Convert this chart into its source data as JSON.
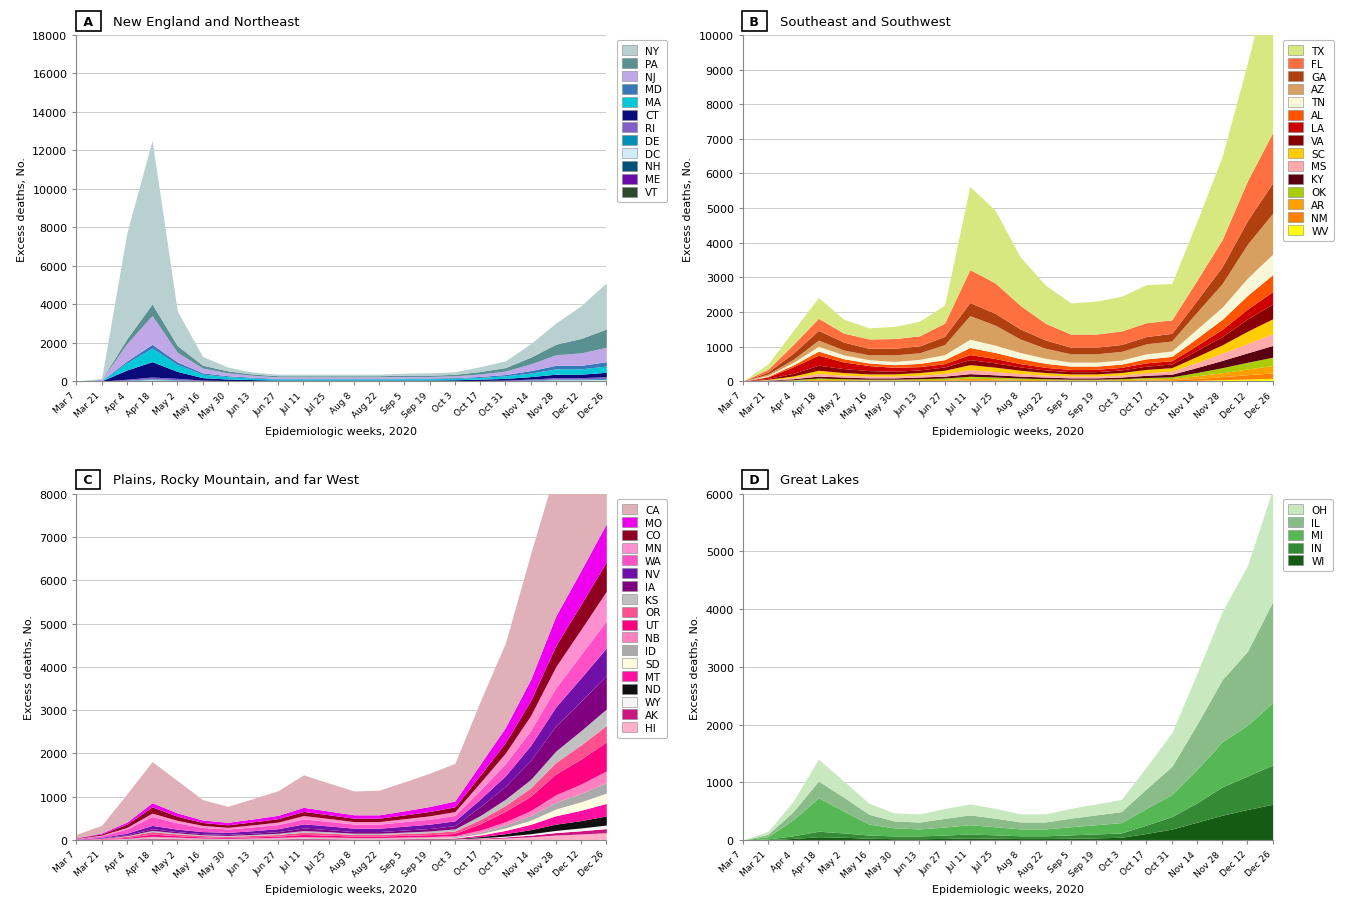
{
  "x_labels": [
    "Mar 7",
    "Mar 21",
    "Apr 4",
    "Apr 18",
    "May 2",
    "May 16",
    "May 30",
    "Jun 13",
    "Jun 27",
    "Jul 11",
    "Jul 25",
    "Aug 8",
    "Aug 22",
    "Sep 5",
    "Sep 19",
    "Oct 3",
    "Oct 17",
    "Oct 31",
    "Nov 14",
    "Nov 28",
    "Dec 12",
    "Dec 26"
  ],
  "panel_A": {
    "title": "New England and Northeast",
    "label": "A",
    "ylabel": "Excess deaths, No.",
    "ylim": [
      0,
      18000
    ],
    "yticks": [
      0,
      2000,
      4000,
      6000,
      8000,
      10000,
      12000,
      14000,
      16000,
      18000
    ],
    "states": [
      "VT",
      "ME",
      "NH",
      "DC",
      "DE",
      "RI",
      "CT",
      "MA",
      "MD",
      "NJ",
      "PA",
      "NY"
    ],
    "colors": [
      "#2d4a2d",
      "#6a0aaa",
      "#00507a",
      "#d0ecf8",
      "#0090b8",
      "#8060c8",
      "#0a0a7a",
      "#00c8d8",
      "#3878b8",
      "#c0a8e8",
      "#5a9090",
      "#b8d0d0"
    ],
    "data": {
      "NY": [
        0,
        50,
        5500,
        8500,
        1800,
        450,
        200,
        100,
        80,
        80,
        80,
        80,
        80,
        100,
        120,
        130,
        250,
        350,
        700,
        1100,
        1700,
        2400
      ],
      "PA": [
        0,
        20,
        250,
        600,
        350,
        150,
        100,
        70,
        60,
        60,
        60,
        60,
        60,
        70,
        70,
        80,
        130,
        180,
        350,
        550,
        750,
        950
      ],
      "NJ": [
        0,
        30,
        900,
        1500,
        500,
        250,
        150,
        100,
        80,
        80,
        80,
        80,
        80,
        80,
        80,
        90,
        130,
        180,
        350,
        550,
        650,
        750
      ],
      "MD": [
        0,
        10,
        90,
        200,
        130,
        70,
        50,
        40,
        30,
        30,
        30,
        30,
        30,
        35,
        35,
        40,
        50,
        70,
        130,
        180,
        180,
        230
      ],
      "MA": [
        0,
        20,
        380,
        700,
        360,
        180,
        120,
        80,
        60,
        60,
        60,
        60,
        60,
        70,
        70,
        70,
        90,
        130,
        180,
        280,
        280,
        320
      ],
      "CT": [
        0,
        15,
        480,
        800,
        360,
        130,
        80,
        60,
        40,
        40,
        40,
        40,
        40,
        45,
        45,
        50,
        70,
        90,
        130,
        180,
        180,
        230
      ],
      "RI": [
        0,
        4,
        45,
        95,
        70,
        25,
        15,
        10,
        8,
        8,
        8,
        8,
        8,
        9,
        9,
        12,
        16,
        25,
        45,
        70,
        70,
        90
      ],
      "DE": [
        0,
        2,
        18,
        38,
        26,
        12,
        8,
        6,
        4,
        4,
        4,
        4,
        4,
        4,
        4,
        6,
        8,
        12,
        22,
        35,
        35,
        45
      ],
      "DC": [
        0,
        2,
        28,
        58,
        35,
        12,
        8,
        6,
        4,
        4,
        4,
        4,
        4,
        4,
        4,
        6,
        8,
        12,
        22,
        35,
        35,
        45
      ],
      "NH": [
        0,
        1,
        9,
        18,
        12,
        6,
        4,
        3,
        2,
        2,
        2,
        2,
        2,
        2,
        2,
        3,
        4,
        6,
        12,
        22,
        22,
        26
      ],
      "ME": [
        0,
        1,
        4,
        8,
        6,
        3,
        2,
        1,
        1,
        1,
        1,
        1,
        1,
        1,
        1,
        2,
        3,
        4,
        8,
        18,
        18,
        22
      ],
      "VT": [
        0,
        0,
        2,
        4,
        3,
        1,
        1,
        1,
        0,
        0,
        0,
        0,
        0,
        0,
        0,
        1,
        1,
        2,
        4,
        8,
        8,
        10
      ]
    }
  },
  "panel_B": {
    "title": "Southeast and Southwest",
    "label": "B",
    "ylabel": "Excess deaths, No.",
    "ylim": [
      0,
      10000
    ],
    "yticks": [
      0,
      1000,
      2000,
      3000,
      4000,
      5000,
      6000,
      7000,
      8000,
      9000,
      10000
    ],
    "states": [
      "WV",
      "NM",
      "AR",
      "OK",
      "KY",
      "MS",
      "SC",
      "VA",
      "LA",
      "AL",
      "TN",
      "AZ",
      "GA",
      "FL",
      "TX"
    ],
    "colors": [
      "#ffff00",
      "#ff8000",
      "#ffa000",
      "#aacc00",
      "#5a0010",
      "#ffaaaa",
      "#ffcc00",
      "#880000",
      "#cc0000",
      "#ff5500",
      "#f8f8d8",
      "#d8a060",
      "#b04010",
      "#ff7040",
      "#d8e880"
    ],
    "data": {
      "TX": [
        0,
        150,
        400,
        600,
        400,
        320,
        350,
        420,
        520,
        2400,
        2100,
        1400,
        1100,
        900,
        950,
        1000,
        1100,
        1050,
        1700,
        2400,
        3400,
        4900
      ],
      "FL": [
        0,
        80,
        250,
        350,
        260,
        270,
        280,
        290,
        380,
        950,
        880,
        680,
        480,
        380,
        380,
        390,
        400,
        390,
        580,
        780,
        1150,
        1450
      ],
      "GA": [
        0,
        60,
        180,
        280,
        230,
        190,
        190,
        200,
        240,
        380,
        340,
        290,
        240,
        190,
        190,
        200,
        210,
        220,
        340,
        490,
        680,
        880
      ],
      "AZ": [
        0,
        40,
        90,
        180,
        140,
        140,
        190,
        190,
        290,
        680,
        580,
        390,
        290,
        240,
        240,
        250,
        290,
        290,
        490,
        680,
        980,
        1180
      ],
      "TN": [
        0,
        25,
        70,
        140,
        110,
        95,
        95,
        115,
        145,
        240,
        210,
        175,
        145,
        115,
        115,
        115,
        145,
        155,
        260,
        355,
        500,
        590
      ],
      "AL": [
        0,
        20,
        55,
        115,
        95,
        75,
        75,
        95,
        115,
        205,
        175,
        145,
        115,
        95,
        95,
        95,
        115,
        125,
        210,
        285,
        395,
        490
      ],
      "LA": [
        0,
        40,
        190,
        290,
        190,
        145,
        115,
        95,
        95,
        145,
        125,
        95,
        75,
        65,
        65,
        75,
        95,
        95,
        145,
        210,
        285,
        355
      ],
      "VA": [
        0,
        25,
        75,
        145,
        115,
        95,
        75,
        75,
        95,
        145,
        125,
        95,
        75,
        65,
        65,
        75,
        95,
        105,
        175,
        240,
        355,
        430
      ],
      "SC": [
        0,
        15,
        45,
        95,
        75,
        65,
        65,
        75,
        95,
        145,
        125,
        95,
        75,
        65,
        65,
        75,
        95,
        105,
        175,
        240,
        355,
        430
      ],
      "MS": [
        0,
        12,
        35,
        75,
        55,
        50,
        50,
        55,
        75,
        115,
        95,
        75,
        55,
        50,
        50,
        55,
        75,
        85,
        145,
        210,
        270,
        340
      ],
      "KY": [
        0,
        12,
        28,
        55,
        48,
        38,
        38,
        48,
        55,
        75,
        65,
        55,
        48,
        38,
        38,
        48,
        65,
        75,
        145,
        210,
        270,
        340
      ],
      "OK": [
        0,
        8,
        18,
        38,
        28,
        24,
        24,
        28,
        38,
        55,
        48,
        38,
        28,
        24,
        24,
        28,
        38,
        48,
        95,
        145,
        195,
        240
      ],
      "AR": [
        0,
        6,
        14,
        28,
        24,
        19,
        19,
        24,
        28,
        48,
        38,
        28,
        24,
        19,
        19,
        24,
        34,
        38,
        75,
        115,
        165,
        215
      ],
      "NM": [
        0,
        4,
        9,
        19,
        14,
        12,
        12,
        14,
        19,
        28,
        24,
        19,
        14,
        12,
        12,
        14,
        24,
        28,
        55,
        85,
        125,
        155
      ],
      "WV": [
        0,
        2,
        4,
        9,
        8,
        5,
        5,
        8,
        9,
        14,
        12,
        9,
        8,
        5,
        5,
        8,
        12,
        14,
        28,
        48,
        65,
        85
      ]
    }
  },
  "panel_C": {
    "title": "Plains, Rocky Mountain, and far West",
    "label": "C",
    "ylabel": "Excess deaths, No.",
    "ylim": [
      0,
      8000
    ],
    "yticks": [
      0,
      1000,
      2000,
      3000,
      4000,
      5000,
      6000,
      7000,
      8000
    ],
    "states": [
      "HI",
      "AK",
      "WY",
      "ND",
      "MT",
      "SD",
      "ID",
      "NB",
      "UT",
      "OR",
      "KS",
      "IA",
      "NV",
      "WA",
      "MN",
      "CO",
      "MO",
      "CA"
    ],
    "colors": [
      "#ffb0c8",
      "#cc1580",
      "#f5f5f5",
      "#101010",
      "#ff10a0",
      "#fffae0",
      "#aaaaaa",
      "#ff80c0",
      "#ff0080",
      "#ff5090",
      "#c0c0c0",
      "#800080",
      "#7010a8",
      "#ff50c8",
      "#ff90d0",
      "#900020",
      "#ee00ee",
      "#e0b0b8"
    ],
    "data": {
      "CA": [
        80,
        180,
        650,
        950,
        750,
        470,
        370,
        470,
        570,
        750,
        650,
        550,
        570,
        670,
        770,
        870,
        1450,
        1950,
        2900,
        3400,
        3700,
        4400
      ],
      "MO": [
        4,
        18,
        48,
        95,
        75,
        58,
        58,
        68,
        78,
        95,
        85,
        78,
        78,
        95,
        115,
        135,
        250,
        345,
        490,
        680,
        780,
        880
      ],
      "CO": [
        9,
        28,
        75,
        145,
        95,
        68,
        58,
        68,
        78,
        95,
        85,
        78,
        78,
        88,
        100,
        110,
        175,
        245,
        345,
        490,
        580,
        680
      ],
      "MN": [
        4,
        14,
        38,
        78,
        58,
        48,
        38,
        48,
        58,
        78,
        68,
        58,
        58,
        68,
        78,
        88,
        175,
        245,
        345,
        490,
        580,
        680
      ],
      "WA": [
        14,
        38,
        95,
        205,
        145,
        95,
        78,
        88,
        95,
        115,
        105,
        95,
        95,
        105,
        115,
        125,
        205,
        280,
        345,
        440,
        540,
        630
      ],
      "NV": [
        4,
        14,
        38,
        78,
        58,
        48,
        48,
        58,
        68,
        95,
        85,
        78,
        78,
        88,
        100,
        110,
        175,
        245,
        345,
        440,
        540,
        630
      ],
      "IA": [
        2,
        8,
        19,
        38,
        28,
        24,
        24,
        28,
        38,
        58,
        48,
        38,
        38,
        48,
        58,
        75,
        205,
        295,
        440,
        580,
        680,
        780
      ],
      "KS": [
        2,
        5,
        14,
        28,
        24,
        19,
        19,
        24,
        28,
        38,
        33,
        28,
        28,
        33,
        38,
        48,
        95,
        145,
        195,
        265,
        330,
        380
      ],
      "OR": [
        4,
        11,
        28,
        58,
        42,
        33,
        28,
        33,
        38,
        52,
        47,
        38,
        38,
        42,
        47,
        58,
        95,
        135,
        195,
        265,
        330,
        380
      ],
      "UT": [
        3,
        8,
        19,
        48,
        33,
        24,
        19,
        24,
        28,
        48,
        42,
        33,
        33,
        38,
        42,
        52,
        145,
        240,
        330,
        480,
        575,
        670
      ],
      "NB": [
        2,
        4,
        9,
        19,
        14,
        11,
        9,
        11,
        14,
        19,
        17,
        14,
        14,
        17,
        19,
        24,
        48,
        75,
        115,
        175,
        215,
        270
      ],
      "ID": [
        1,
        3,
        8,
        14,
        11,
        9,
        8,
        9,
        11,
        14,
        12,
        10,
        10,
        12,
        14,
        17,
        38,
        68,
        105,
        155,
        195,
        240
      ],
      "SD": [
        1,
        2,
        4,
        9,
        8,
        5,
        5,
        6,
        8,
        9,
        8,
        8,
        8,
        8,
        9,
        11,
        28,
        58,
        95,
        155,
        195,
        240
      ],
      "MT": [
        1,
        2,
        4,
        9,
        8,
        5,
        4,
        5,
        8,
        9,
        8,
        6,
        6,
        8,
        9,
        11,
        38,
        75,
        125,
        195,
        240,
        290
      ],
      "ND": [
        0,
        1,
        3,
        8,
        5,
        4,
        3,
        4,
        5,
        8,
        6,
        5,
        5,
        6,
        8,
        9,
        28,
        58,
        95,
        145,
        170,
        210
      ],
      "WY": [
        0,
        0,
        1,
        3,
        2,
        1,
        1,
        2,
        2,
        3,
        3,
        2,
        2,
        3,
        3,
        4,
        9,
        18,
        32,
        50,
        65,
        82
      ],
      "AK": [
        0,
        1,
        3,
        8,
        5,
        3,
        2,
        3,
        4,
        6,
        5,
        4,
        4,
        5,
        6,
        8,
        14,
        24,
        38,
        58,
        75,
        95
      ],
      "HI": [
        1,
        4,
        9,
        19,
        14,
        9,
        8,
        9,
        11,
        14,
        12,
        10,
        10,
        12,
        14,
        17,
        28,
        48,
        75,
        115,
        140,
        170
      ]
    }
  },
  "panel_D": {
    "title": "Great Lakes",
    "label": "D",
    "ylabel": "Excess deaths, No.",
    "ylim": [
      0,
      6000
    ],
    "yticks": [
      0,
      1000,
      2000,
      3000,
      4000,
      5000,
      6000
    ],
    "states": [
      "WI",
      "IN",
      "MI",
      "IL",
      "OH"
    ],
    "colors": [
      "#145c14",
      "#358a35",
      "#55b855",
      "#8abc8a",
      "#c8e8c0"
    ],
    "data": {
      "OH": [
        0,
        50,
        180,
        380,
        280,
        190,
        140,
        140,
        170,
        190,
        170,
        140,
        140,
        170,
        190,
        210,
        380,
        580,
        880,
        1180,
        1480,
        1950
      ],
      "IL": [
        0,
        40,
        140,
        290,
        240,
        170,
        120,
        120,
        150,
        170,
        150,
        120,
        120,
        150,
        170,
        190,
        340,
        490,
        780,
        1080,
        1280,
        1750
      ],
      "MI": [
        0,
        40,
        280,
        580,
        380,
        190,
        140,
        120,
        140,
        160,
        140,
        120,
        120,
        140,
        160,
        180,
        290,
        380,
        580,
        780,
        880,
        1080
      ],
      "IN": [
        0,
        12,
        45,
        95,
        75,
        55,
        48,
        48,
        58,
        68,
        58,
        48,
        48,
        58,
        68,
        75,
        145,
        215,
        335,
        490,
        580,
        680
      ],
      "WI": [
        0,
        8,
        28,
        58,
        48,
        32,
        24,
        24,
        28,
        38,
        32,
        26,
        26,
        32,
        38,
        48,
        115,
        190,
        310,
        430,
        530,
        620
      ]
    }
  }
}
